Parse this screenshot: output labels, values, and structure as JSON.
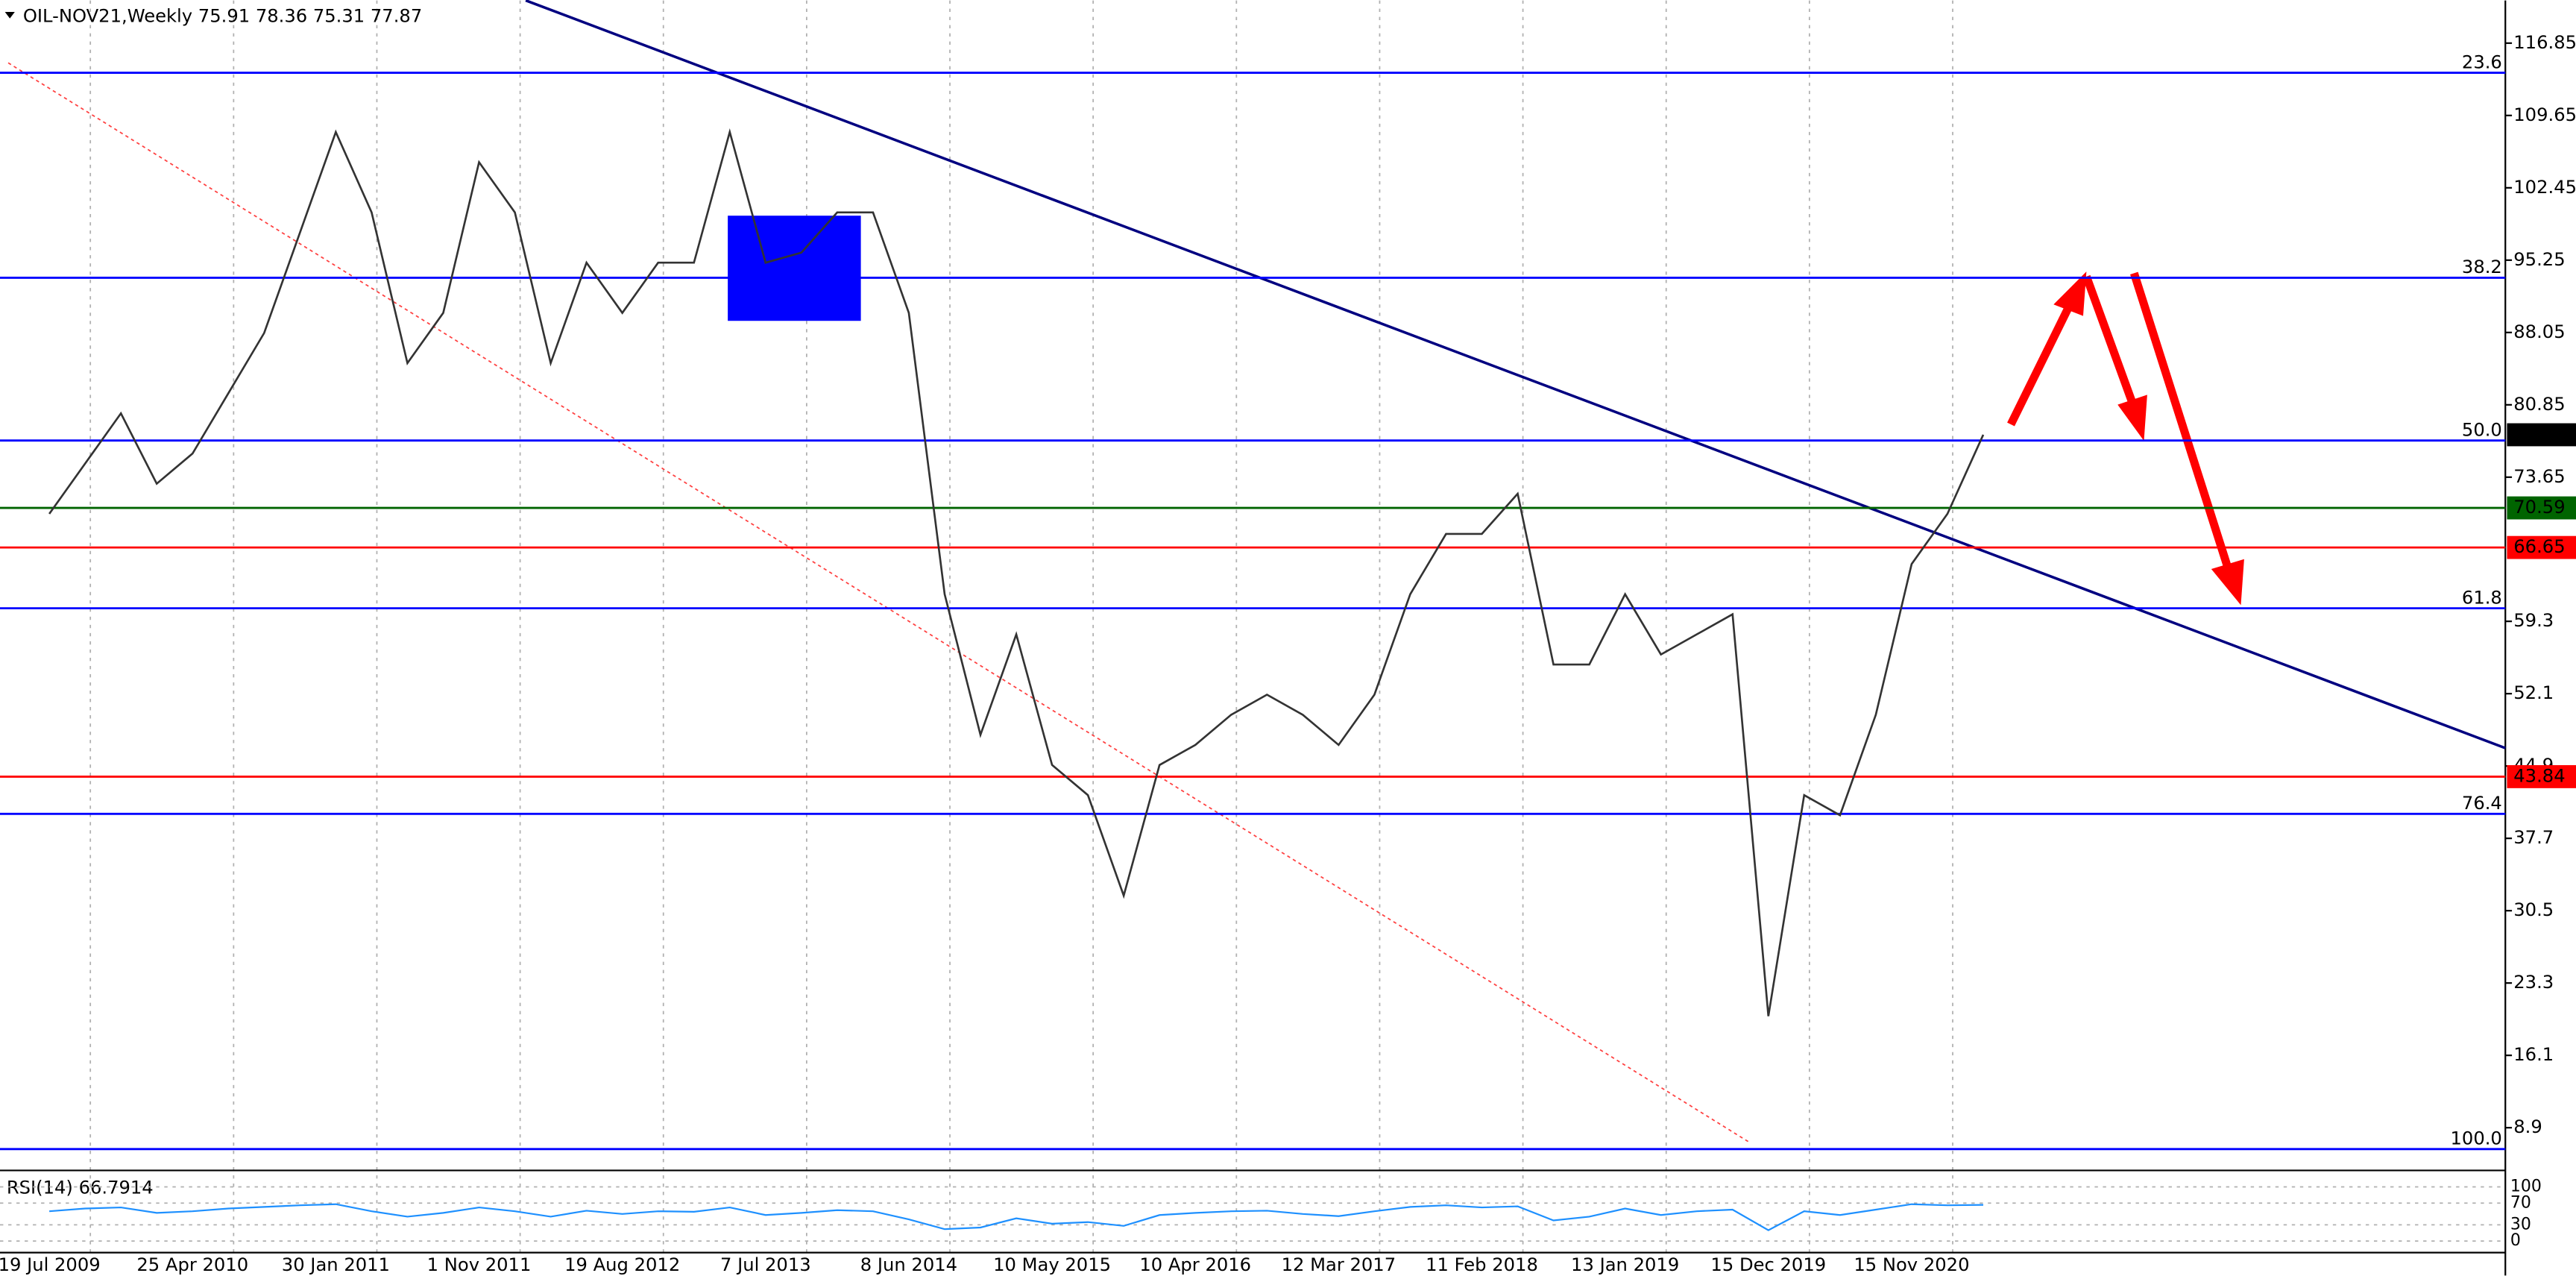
{
  "chart_data": {
    "type": "line",
    "title": "OIL-NOV21,Weekly  75.91 78.36 75.31 77.87",
    "categories": [
      "19 Jul 2009",
      null,
      null,
      null,
      "25 Apr 2010",
      null,
      null,
      null,
      "30 Jan 2011",
      null,
      null,
      null,
      "1 Nov 2011",
      null,
      null,
      null,
      "19 Aug 2012",
      null,
      null,
      null,
      "7 Jul 2013",
      null,
      null,
      null,
      "8 Jun 2014",
      null,
      null,
      null,
      "10 May 2015",
      null,
      null,
      null,
      "10 Apr 2016",
      null,
      null,
      null,
      "12 Mar 2017",
      null,
      null,
      null,
      "11 Feb 2018",
      null,
      null,
      null,
      "13 Jan 2019",
      null,
      null,
      null,
      "15 Dec 2019",
      null,
      null,
      null,
      "15 Nov 2020",
      null,
      null
    ],
    "series": [
      {
        "name": "OIL-NOV21",
        "color": "#333333",
        "values": [
          70,
          75,
          80,
          73,
          76,
          82,
          88,
          98,
          108,
          100,
          85,
          90,
          105,
          100,
          85,
          95,
          90,
          95,
          95,
          108,
          95,
          96,
          100,
          100,
          90,
          62,
          48,
          58,
          45,
          42,
          32,
          45,
          47,
          50,
          52,
          50,
          47,
          52,
          62,
          68,
          68,
          72,
          55,
          55,
          62,
          56,
          58,
          60,
          20,
          42,
          40,
          50,
          65,
          70,
          77.87
        ]
      }
    ],
    "ylim": [
      5.63,
      121.1
    ],
    "yticks": [
      116.85,
      109.65,
      102.45,
      95.25,
      88.05,
      80.85,
      73.65,
      59.3,
      52.1,
      44.9,
      37.7,
      30.5,
      23.3,
      16.1,
      8.9
    ],
    "grid": true,
    "levels": [
      {
        "label": "23.6",
        "value": 113.9,
        "color": "#0000ff"
      },
      {
        "label": "38.2",
        "value": 93.5,
        "color": "#0000ff"
      },
      {
        "label": "50.0",
        "value": 77.3,
        "color": "#0000ff"
      },
      {
        "label": "61.8",
        "value": 60.6,
        "color": "#0000ff"
      },
      {
        "label": "76.4",
        "value": 40.14,
        "color": "#0000ff"
      },
      {
        "label": "100.0",
        "value": 6.77,
        "color": "#0000ff"
      }
    ],
    "price_lines": [
      {
        "value": 77.87,
        "color": "#000000"
      },
      {
        "value": 70.59,
        "color": "#006400"
      },
      {
        "value": 66.65,
        "color": "#ff0000"
      },
      {
        "value": 43.84,
        "color": "#ff0000"
      }
    ],
    "rsi": {
      "label": "RSI(14) 66.7914",
      "color": "#1e90ff",
      "ylim": [
        0,
        100
      ],
      "yticks": [
        100,
        70,
        30,
        0
      ],
      "values": [
        55,
        60,
        62,
        52,
        55,
        60,
        63,
        66,
        68,
        55,
        45,
        52,
        62,
        55,
        45,
        56,
        50,
        55,
        54,
        62,
        48,
        52,
        57,
        55,
        40,
        22,
        25,
        42,
        32,
        35,
        28,
        48,
        52,
        55,
        56,
        50,
        46,
        55,
        63,
        66,
        62,
        64,
        38,
        45,
        60,
        48,
        55,
        58,
        20,
        55,
        48,
        58,
        68,
        66,
        66.79
      ]
    }
  }
}
